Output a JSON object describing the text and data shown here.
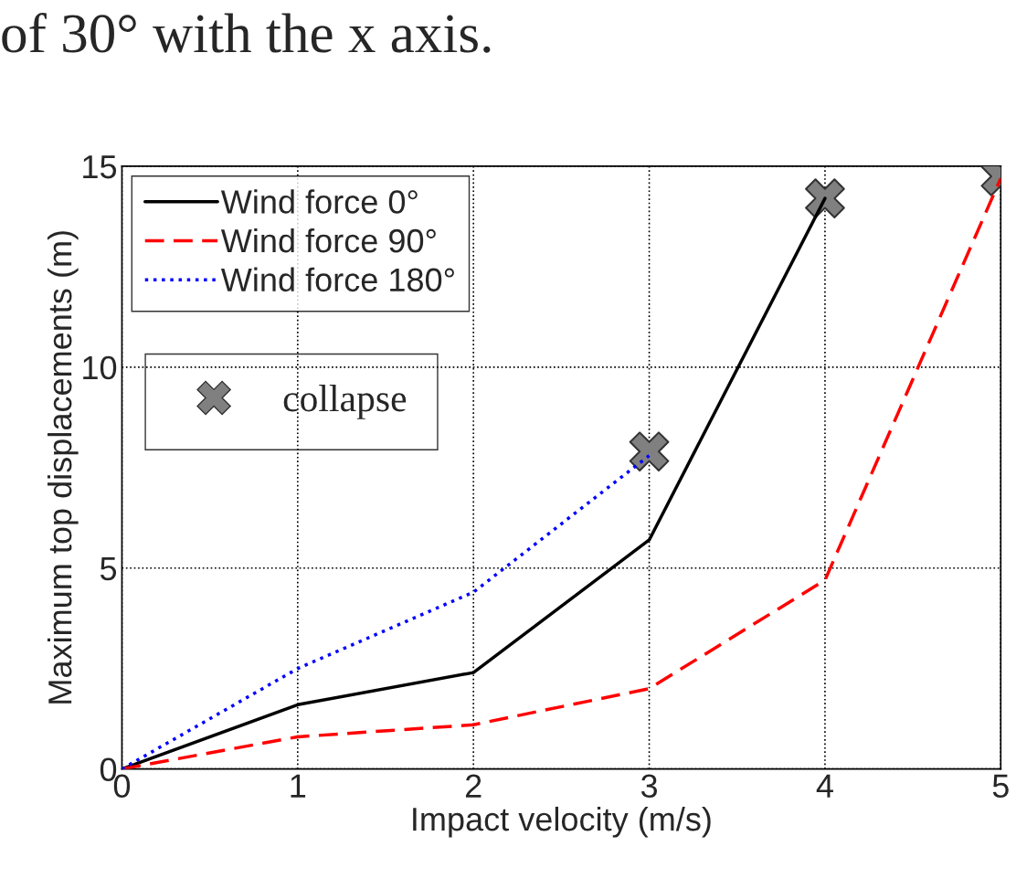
{
  "chart_data": {
    "type": "line",
    "annotations": [
      "of 30° with the x axis."
    ],
    "xlabel": "Impact velocity (m/s)",
    "ylabel": "Maximum top displacements (m)",
    "xlim": [
      0,
      5
    ],
    "xticks": [
      0,
      1,
      2,
      3,
      4,
      5
    ],
    "ylim": [
      0,
      15
    ],
    "yticks": [
      0,
      5,
      10,
      15
    ],
    "grid": true,
    "legend": "top left",
    "series": [
      {
        "name": "Wind force 0°",
        "color": "#000000",
        "line_style": "solid",
        "x": [
          0,
          1,
          2,
          3,
          4
        ],
        "values": [
          0,
          1.6,
          2.4,
          5.7,
          14.2
        ]
      },
      {
        "name": "Wind force 90°",
        "color": "#ff0000",
        "line_style": "dashed",
        "x": [
          0,
          1,
          2,
          3,
          4,
          5
        ],
        "values": [
          0,
          0.8,
          1.1,
          2.0,
          4.7,
          14.7
        ]
      },
      {
        "name": "Wind force 180°",
        "color": "#0000ff",
        "line_style": "dotted",
        "x": [
          0,
          1,
          2,
          3
        ],
        "values": [
          0,
          2.5,
          4.4,
          7.8
        ]
      },
      {
        "name": "collapse",
        "type": "scatter",
        "marker": "cross",
        "color": "#808080",
        "x": [
          3,
          4,
          5
        ],
        "values": [
          7.9,
          14.2,
          14.75
        ]
      }
    ]
  }
}
